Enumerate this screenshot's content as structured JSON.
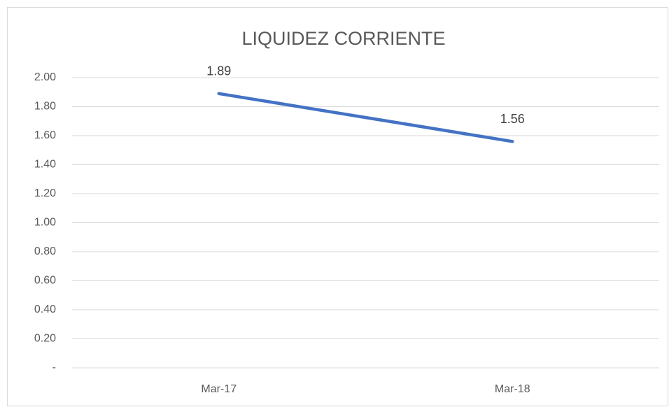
{
  "chart_data": {
    "type": "line",
    "title": "LIQUIDEZ CORRIENTE",
    "categories": [
      "Mar-17",
      "Mar-18"
    ],
    "values": [
      1.89,
      1.56
    ],
    "color": "#4472c4",
    "ylim": [
      0,
      2
    ],
    "yticks": [
      {
        "value": 0,
        "label": "-"
      },
      {
        "value": 0.2,
        "label": "0.20"
      },
      {
        "value": 0.4,
        "label": "0.40"
      },
      {
        "value": 0.6,
        "label": "0.60"
      },
      {
        "value": 0.8,
        "label": "0.80"
      },
      {
        "value": 1,
        "label": "1.00"
      },
      {
        "value": 1.2,
        "label": "1.20"
      },
      {
        "value": 1.4,
        "label": "1.40"
      },
      {
        "value": 1.6,
        "label": "1.60"
      },
      {
        "value": 1.8,
        "label": "1.80"
      },
      {
        "value": 2,
        "label": "2.00"
      }
    ],
    "grid": true
  }
}
